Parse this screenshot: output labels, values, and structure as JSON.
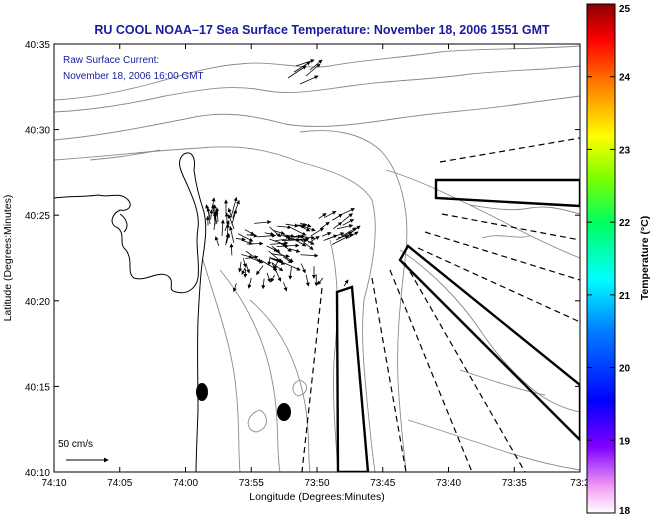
{
  "title": "RU COOL  NOAA–17  Sea Surface Temperature:  November 18, 2006 1551 GMT",
  "current_label": {
    "line1": "Raw Surface Current:",
    "line2": "November 18, 2006 16:00 GMT"
  },
  "scale_label": "50 cm/s",
  "x_axis": {
    "label": "Longitude (Degrees:Minutes)",
    "ticks": [
      "74:10",
      "74:05",
      "74:00",
      "73:55",
      "73:50",
      "73:45",
      "73:40",
      "73:35",
      "73:3"
    ]
  },
  "y_axis": {
    "label": "Latitude (Degrees:Minutes)",
    "ticks": [
      "40:35",
      "40:30",
      "40:25",
      "40:20",
      "40:15",
      "40:10"
    ]
  },
  "colorbar": {
    "label": "Temperature (°C)",
    "ticks": [
      "25",
      "24",
      "23",
      "22",
      "21",
      "20",
      "19",
      "18"
    ],
    "min": 18,
    "max": 25
  }
}
